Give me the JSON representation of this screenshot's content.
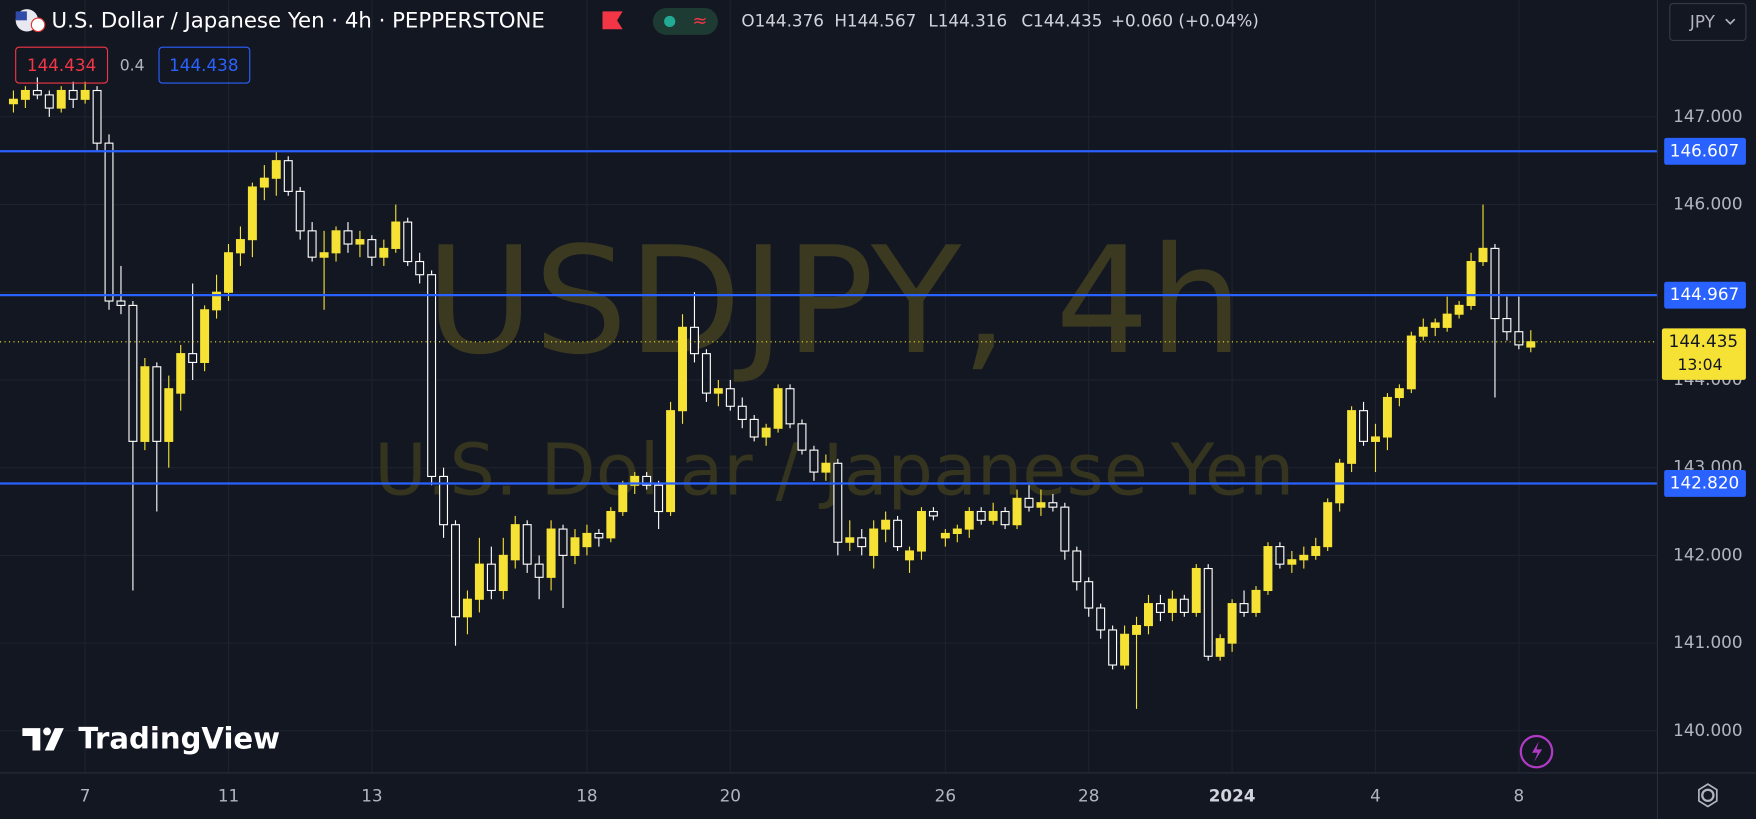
{
  "chart_data": {
    "type": "candlestick",
    "title": "U.S. Dollar / Japanese Yen · 4h · PEPPERSTONE",
    "ohlc_readout": [
      "O144.376",
      "H144.567",
      "L144.316",
      "C144.435",
      "+0.060 (+0.04%)"
    ],
    "bid": "144.434",
    "spread": "0.4",
    "ask": "144.438",
    "currency": "JPY",
    "watermark": [
      "USDJPY, 4h",
      "U.S. Dollar / Japanese Yen"
    ],
    "brand": "TradingView",
    "up_color": "#f5e234",
    "down_color": "#ffffff",
    "open": [
      147.15,
      147.2,
      147.3,
      147.25,
      147.1,
      147.3,
      147.2,
      147.3,
      146.7,
      144.9,
      144.85,
      143.3,
      144.15,
      143.3,
      143.85,
      144.3,
      144.2,
      144.8,
      145.0,
      145.45,
      145.6,
      146.2,
      146.3,
      146.5,
      146.15,
      145.7,
      145.4,
      145.45,
      145.7,
      145.55,
      145.6,
      145.4,
      145.5,
      145.8,
      145.35,
      145.2,
      142.9,
      142.35,
      141.3,
      141.5,
      141.9,
      141.6,
      141.95,
      142.35,
      141.9,
      141.75,
      142.3,
      142.0,
      142.1,
      142.25,
      142.2,
      142.5,
      142.8,
      142.9,
      142.8,
      142.5,
      143.65,
      144.6,
      144.3,
      143.85,
      143.9,
      143.7,
      143.55,
      143.35,
      143.45,
      143.9,
      143.5,
      143.2,
      142.95,
      143.05,
      142.15,
      142.2,
      142.0,
      142.3,
      142.4,
      141.95,
      142.05,
      142.5,
      142.2,
      142.25,
      142.3,
      142.5,
      142.4,
      142.5,
      142.35,
      142.65,
      142.55,
      142.6,
      142.55,
      142.05,
      141.7,
      141.4,
      141.15,
      140.75,
      141.1,
      141.2,
      141.45,
      141.35,
      141.5,
      141.35,
      141.85,
      140.85,
      141.0,
      141.45,
      141.35,
      141.6,
      142.1,
      141.9,
      141.95,
      142.0,
      142.1,
      142.6,
      143.05,
      143.65,
      143.3,
      143.35,
      143.8,
      143.9,
      144.5,
      144.6,
      144.6,
      144.75,
      144.85,
      145.35,
      145.5,
      144.7,
      144.55,
      144.376
    ],
    "high": [
      147.3,
      147.35,
      147.45,
      147.3,
      147.35,
      147.4,
      147.4,
      147.35,
      146.8,
      145.3,
      144.9,
      144.25,
      144.2,
      144.05,
      144.4,
      145.1,
      144.85,
      145.2,
      145.55,
      145.75,
      146.25,
      146.45,
      146.6,
      146.55,
      146.2,
      145.8,
      145.7,
      145.75,
      145.8,
      145.7,
      145.65,
      145.6,
      146.0,
      145.85,
      145.45,
      145.25,
      143.0,
      142.4,
      141.6,
      142.2,
      142.1,
      142.2,
      142.45,
      142.4,
      142.0,
      142.4,
      142.35,
      142.3,
      142.35,
      142.3,
      142.55,
      142.85,
      142.95,
      142.95,
      142.85,
      143.75,
      144.75,
      145.0,
      144.35,
      144.0,
      144.0,
      143.8,
      143.6,
      143.5,
      143.95,
      143.95,
      143.55,
      143.25,
      143.15,
      143.1,
      142.4,
      142.3,
      142.4,
      142.5,
      142.45,
      142.1,
      142.55,
      142.55,
      142.3,
      142.35,
      142.55,
      142.55,
      142.6,
      142.55,
      142.75,
      142.8,
      142.75,
      142.7,
      142.6,
      142.1,
      141.75,
      141.45,
      141.2,
      141.2,
      141.3,
      141.55,
      141.55,
      141.6,
      141.55,
      141.9,
      141.9,
      141.1,
      141.5,
      141.6,
      141.65,
      142.15,
      142.15,
      142.05,
      142.1,
      142.2,
      142.65,
      143.1,
      143.7,
      143.75,
      143.5,
      143.85,
      143.95,
      144.55,
      144.7,
      144.7,
      144.95,
      144.9,
      145.45,
      146.0,
      145.55,
      144.95,
      144.95,
      144.567
    ],
    "low": [
      147.05,
      147.1,
      147.2,
      147.0,
      147.05,
      147.1,
      147.15,
      146.6,
      144.8,
      144.75,
      141.6,
      143.2,
      142.5,
      143.0,
      143.65,
      144.0,
      144.1,
      144.7,
      144.9,
      145.3,
      145.4,
      146.05,
      146.1,
      146.1,
      145.6,
      145.35,
      144.8,
      145.35,
      145.45,
      145.4,
      145.3,
      145.3,
      145.45,
      145.3,
      145.1,
      142.8,
      142.2,
      140.97,
      141.1,
      141.35,
      141.5,
      141.5,
      141.85,
      141.8,
      141.5,
      141.6,
      141.4,
      141.9,
      142.0,
      142.1,
      142.15,
      142.45,
      142.7,
      142.75,
      142.3,
      142.45,
      143.5,
      144.2,
      143.75,
      143.7,
      143.65,
      143.45,
      143.3,
      143.25,
      143.4,
      143.45,
      143.15,
      142.85,
      142.85,
      142.0,
      142.05,
      142.0,
      141.85,
      142.15,
      142.05,
      141.8,
      141.95,
      142.4,
      142.1,
      142.15,
      142.2,
      142.35,
      142.35,
      142.3,
      142.3,
      142.5,
      142.45,
      142.5,
      141.95,
      141.6,
      141.3,
      141.05,
      140.7,
      140.7,
      140.25,
      141.1,
      141.25,
      141.25,
      141.3,
      141.3,
      140.8,
      140.8,
      140.9,
      141.3,
      141.3,
      141.55,
      141.85,
      141.8,
      141.85,
      141.95,
      142.05,
      142.5,
      142.95,
      143.25,
      142.95,
      143.2,
      143.7,
      143.85,
      144.45,
      144.5,
      144.55,
      144.7,
      144.8,
      145.3,
      143.8,
      144.45,
      144.35,
      144.316
    ],
    "close": [
      147.2,
      147.3,
      147.25,
      147.1,
      147.3,
      147.2,
      147.3,
      146.7,
      144.9,
      144.85,
      143.3,
      144.15,
      143.3,
      143.9,
      144.3,
      144.2,
      144.8,
      145.0,
      145.45,
      145.6,
      146.2,
      146.3,
      146.5,
      146.15,
      145.7,
      145.4,
      145.45,
      145.7,
      145.55,
      145.6,
      145.4,
      145.5,
      145.8,
      145.35,
      145.2,
      142.9,
      142.35,
      141.3,
      141.5,
      141.9,
      141.6,
      142.0,
      142.35,
      141.9,
      141.75,
      142.3,
      142.0,
      142.2,
      142.25,
      142.2,
      142.5,
      142.8,
      142.9,
      142.8,
      142.5,
      143.65,
      144.6,
      144.3,
      143.85,
      143.9,
      143.7,
      143.55,
      143.35,
      143.45,
      143.9,
      143.5,
      143.2,
      142.95,
      143.05,
      142.15,
      142.2,
      142.1,
      142.3,
      142.4,
      142.1,
      142.05,
      142.5,
      142.45,
      142.25,
      142.3,
      142.5,
      142.4,
      142.5,
      142.35,
      142.65,
      142.55,
      142.6,
      142.55,
      142.05,
      141.7,
      141.4,
      141.15,
      140.75,
      141.1,
      141.2,
      141.45,
      141.35,
      141.5,
      141.35,
      141.85,
      140.85,
      141.05,
      141.45,
      141.35,
      141.6,
      142.1,
      141.9,
      141.95,
      142.0,
      142.1,
      142.6,
      143.05,
      143.65,
      143.3,
      143.35,
      143.8,
      143.9,
      144.5,
      144.6,
      144.65,
      144.75,
      144.85,
      145.35,
      145.5,
      144.7,
      144.55,
      144.4,
      144.435
    ],
    "xlim": [
      -1.125,
      137.6
    ],
    "xticks": [
      {
        "value": 6,
        "label": "7"
      },
      {
        "value": 18,
        "label": "11"
      },
      {
        "value": 30,
        "label": "13"
      },
      {
        "value": 48,
        "label": "18"
      },
      {
        "value": 60,
        "label": "20"
      },
      {
        "value": 78,
        "label": "26"
      },
      {
        "value": 90,
        "label": "28"
      },
      {
        "value": 102,
        "label": "2024"
      },
      {
        "value": 114,
        "label": "4"
      },
      {
        "value": 126,
        "label": "8"
      }
    ],
    "ylim": [
      139.52,
      148.33
    ],
    "yticks": [
      {
        "value": 140,
        "label": "140.000"
      },
      {
        "value": 141,
        "label": "141.000"
      },
      {
        "value": 142,
        "label": "142.000"
      },
      {
        "value": 143,
        "label": "143.000"
      },
      {
        "value": 144,
        "label": "144.000"
      },
      {
        "value": 145,
        "label": "145.000"
      },
      {
        "value": 146,
        "label": "146.000"
      },
      {
        "value": 147,
        "label": "147.000"
      }
    ],
    "hlines": [
      {
        "value": 146.607,
        "label": "146.607",
        "color": "#2962ff"
      },
      {
        "value": 144.967,
        "label": "144.967",
        "color": "#2962ff"
      },
      {
        "value": 142.82,
        "label": "142.820",
        "color": "#2962ff"
      }
    ],
    "last_price": {
      "value": 144.435,
      "label": "144.435",
      "countdown": "13:04",
      "color": "#f5e234"
    },
    "grid": true
  }
}
